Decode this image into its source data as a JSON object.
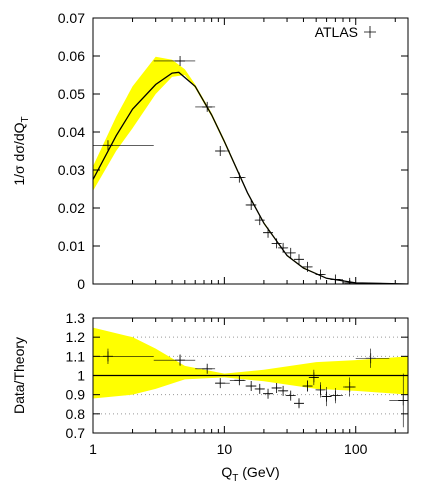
{
  "chart_data": [
    {
      "type": "scatter",
      "ylabel": {
        "main": "1/σ dσ/dQ",
        "sub": "T"
      },
      "xlog": true,
      "xlim": [
        1,
        250
      ],
      "xticks": [
        1,
        10,
        100
      ],
      "xminorticks": [
        2,
        3,
        4,
        5,
        6,
        7,
        8,
        9,
        20,
        30,
        40,
        50,
        60,
        70,
        80,
        90,
        200
      ],
      "show_xticklabels": false,
      "ylim": [
        0,
        0.07
      ],
      "yticks": [
        0,
        0.01,
        0.02,
        0.03,
        0.04,
        0.05,
        0.06,
        0.07
      ],
      "grid": false,
      "legend": "upper right",
      "series": [
        {
          "kind": "band",
          "color": "#ffff00",
          "x": [
            1,
            1.5,
            2,
            3,
            4,
            5,
            6,
            8,
            10,
            15,
            20,
            30,
            40,
            60,
            100,
            250
          ],
          "lower": [
            0.0245,
            0.035,
            0.041,
            0.05,
            0.0545,
            0.055,
            0.0515,
            0.044,
            0.037,
            0.0237,
            0.0157,
            0.0073,
            0.004,
            0.0014,
            0.0002,
            0
          ],
          "upper": [
            0.031,
            0.044,
            0.052,
            0.0598,
            0.059,
            0.0565,
            0.0525,
            0.045,
            0.038,
            0.0243,
            0.0163,
            0.0077,
            0.0044,
            0.0016,
            0.0004,
            0
          ]
        },
        {
          "kind": "line",
          "color": "#000000",
          "x": [
            1,
            1.5,
            2,
            3,
            4,
            4.5,
            6,
            8,
            10,
            15,
            20,
            30,
            40,
            60,
            100,
            250
          ],
          "values": [
            0.0275,
            0.039,
            0.046,
            0.0525,
            0.0555,
            0.0557,
            0.052,
            0.0445,
            0.0375,
            0.024,
            0.016,
            0.0075,
            0.0042,
            0.0015,
            0.0003,
            0
          ]
        },
        {
          "kind": "points",
          "name": "ATLAS",
          "color": "#000000",
          "x": [
            1.3,
            4.6,
            7.4,
            9.3,
            13,
            16,
            18.6,
            21.5,
            25,
            28,
            32,
            37,
            43,
            54,
            70,
            90
          ],
          "x_low": [
            1,
            2.9,
            6,
            8.5,
            11,
            14.5,
            17.5,
            20,
            23,
            26.5,
            30,
            34,
            40,
            51,
            65,
            80
          ],
          "x_high": [
            2.9,
            6,
            8.5,
            11,
            14.5,
            17.5,
            20,
            23,
            26.5,
            30,
            34,
            40,
            46,
            57,
            80,
            100
          ],
          "values": [
            0.0365,
            0.0587,
            0.0466,
            0.035,
            0.028,
            0.0208,
            0.0168,
            0.0135,
            0.0107,
            0.0095,
            0.0082,
            0.0065,
            0.0045,
            0.0025,
            0.0012,
            0.0003
          ]
        }
      ]
    },
    {
      "type": "scatter",
      "ylabel": {
        "main": "Data/Theory"
      },
      "xlabel": {
        "main": "Q",
        "sub": "T",
        "rest": " (GeV)"
      },
      "xlog": true,
      "xlim": [
        1,
        250
      ],
      "xticks": [
        1,
        10,
        100
      ],
      "xminorticks": [
        2,
        3,
        4,
        5,
        6,
        7,
        8,
        9,
        20,
        30,
        40,
        50,
        60,
        70,
        80,
        90,
        200
      ],
      "show_xticklabels": true,
      "ylim": [
        0.7,
        1.3
      ],
      "yticks": [
        0.7,
        0.8,
        0.9,
        1,
        1.1,
        1.2,
        1.3
      ],
      "grid": true,
      "series": [
        {
          "kind": "band",
          "color": "#ffff00",
          "x": [
            1,
            2,
            3,
            5,
            10,
            20,
            50,
            100,
            250
          ],
          "lower": [
            0.88,
            0.9,
            0.93,
            0.98,
            0.99,
            0.97,
            0.93,
            0.92,
            0.9
          ],
          "upper": [
            1.25,
            1.2,
            1.14,
            1.05,
            1.01,
            1.03,
            1.07,
            1.08,
            1.1
          ]
        },
        {
          "kind": "line",
          "color": "#000000",
          "x": [
            1,
            250
          ],
          "values": [
            1,
            1
          ]
        },
        {
          "kind": "points",
          "color": "#000000",
          "x": [
            1.3,
            4.6,
            7.4,
            9.3,
            13,
            16,
            18.6,
            21.5,
            25,
            28,
            32,
            37,
            43,
            48,
            54,
            60,
            70,
            90,
            130,
            230
          ],
          "x_low": [
            1,
            2.9,
            6,
            8.5,
            11,
            14.5,
            17.5,
            20,
            23,
            26.5,
            30,
            34,
            40,
            46,
            51,
            57,
            65,
            80,
            100,
            180
          ],
          "x_high": [
            2.9,
            6,
            8.5,
            11,
            14.5,
            17.5,
            20,
            23,
            26.5,
            30,
            34,
            40,
            46,
            51,
            57,
            65,
            80,
            100,
            180,
            250
          ],
          "values": [
            1.1,
            1.08,
            1.035,
            0.96,
            0.975,
            0.945,
            0.93,
            0.905,
            0.935,
            0.92,
            0.895,
            0.855,
            0.945,
            0.99,
            0.925,
            0.89,
            0.895,
            0.94,
            1.09,
            0.87
          ],
          "errors": [
            0.04,
            0.03,
            0.01,
            0.01,
            0.01,
            0.01,
            0.01,
            0.01,
            0.01,
            0.01,
            0.015,
            0.02,
            0.03,
            0.04,
            0.04,
            0.05,
            0.04,
            0.05,
            0.05,
            0.14
          ]
        }
      ]
    }
  ]
}
